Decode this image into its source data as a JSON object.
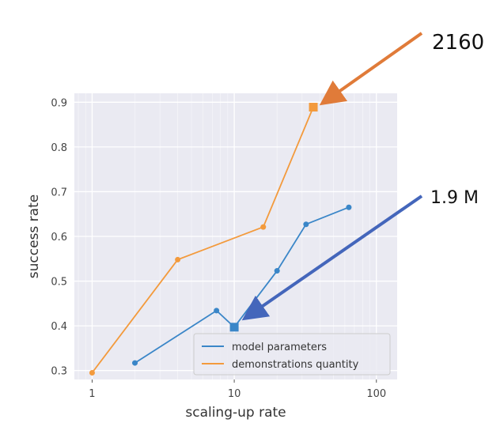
{
  "chart_data": {
    "type": "line",
    "xlabel": "scaling-up rate",
    "ylabel": "success rate",
    "x_scale": "log",
    "xlim": [
      0.75,
      140
    ],
    "ylim": [
      0.28,
      0.92
    ],
    "x_ticks": [
      1,
      10,
      100
    ],
    "x_tick_labels": [
      "1",
      "10",
      "100"
    ],
    "y_ticks": [
      0.3,
      0.4,
      0.5,
      0.6,
      0.7,
      0.8,
      0.9
    ],
    "y_tick_labels": [
      "0.3",
      "0.4",
      "0.5",
      "0.6",
      "0.7",
      "0.8",
      "0.9"
    ],
    "grid": true,
    "legend_position": "lower-right",
    "series": [
      {
        "name": "model parameters",
        "color": "#3a86c8",
        "points": [
          {
            "x": 2,
            "y": 0.317
          },
          {
            "x": 7.5,
            "y": 0.434
          },
          {
            "x": 10,
            "y": 0.397,
            "marker": "square"
          },
          {
            "x": 20,
            "y": 0.523
          },
          {
            "x": 32,
            "y": 0.627
          },
          {
            "x": 64,
            "y": 0.665
          }
        ]
      },
      {
        "name": "demonstrations quantity",
        "color": "#f39a3c",
        "points": [
          {
            "x": 1,
            "y": 0.295
          },
          {
            "x": 4,
            "y": 0.548
          },
          {
            "x": 16,
            "y": 0.621
          },
          {
            "x": 36,
            "y": 0.889,
            "marker": "square"
          }
        ]
      }
    ],
    "annotations": [
      {
        "text": "2160",
        "target": {
          "x": 36,
          "y": 0.889
        },
        "arrow_color": "#e07b39"
      },
      {
        "text": "1.9 M",
        "target": {
          "x": 10,
          "y": 0.397
        },
        "arrow_color": "#4466bb"
      }
    ]
  },
  "colors": {
    "plot_background": "#eaeaf2",
    "grid": "#ffffff"
  }
}
